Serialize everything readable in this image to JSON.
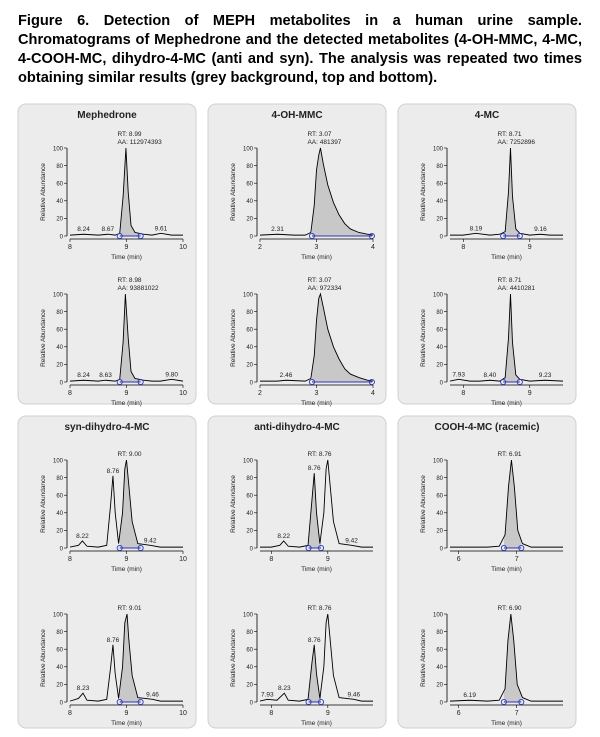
{
  "caption": "Figure 6. Detection of MEPH metabolites in a human urine sample. Chromatograms of Mephedrone and the detected metabolites (4-OH-MMC, 4-MC, 4-COOH-MC, dihydro-4-MC (anti and syn). The analysis was repeated two times obtaining similar results (grey background, top and bottom).",
  "chart_data": [
    {
      "type": "line",
      "title": "Mephedrone",
      "rt_label": "RT: 8.99",
      "aa_label": "AA: 112974393",
      "xlabel": "Time (min)",
      "ylabel": "Relative Abundance",
      "xlim": [
        8,
        10
      ],
      "xticks": [
        8,
        9,
        10
      ],
      "ylim": [
        0,
        100
      ],
      "yticks": [
        0,
        20,
        40,
        60,
        80,
        100
      ],
      "color": "#000000",
      "fill": "#c8c8c8",
      "marker_color": "#2a35c0",
      "x": [
        8.0,
        8.24,
        8.5,
        8.67,
        8.8,
        8.88,
        8.94,
        8.99,
        9.03,
        9.08,
        9.15,
        9.3,
        9.45,
        9.61,
        9.8,
        10.0
      ],
      "values": [
        1,
        2,
        1,
        2,
        1,
        3,
        45,
        100,
        50,
        12,
        4,
        2,
        1,
        3,
        1,
        1
      ],
      "integration_x": [
        8.88,
        9.25
      ],
      "peak_labels": [
        8.24,
        8.67,
        9.61
      ]
    },
    {
      "type": "line",
      "rt_label": "RT: 8.98",
      "aa_label": "AA: 93881022",
      "xlabel": "Time (min)",
      "ylabel": "Relative Abundance",
      "xlim": [
        8,
        10
      ],
      "xticks": [
        8,
        9,
        10
      ],
      "ylim": [
        0,
        100
      ],
      "yticks": [
        0,
        20,
        40,
        60,
        80,
        100
      ],
      "color": "#000000",
      "fill": "#c8c8c8",
      "marker_color": "#2a35c0",
      "x": [
        8.0,
        8.24,
        8.5,
        8.63,
        8.8,
        8.88,
        8.94,
        8.98,
        9.03,
        9.08,
        9.15,
        9.3,
        9.45,
        9.6,
        9.8,
        10.0
      ],
      "values": [
        1,
        2,
        1,
        2,
        1,
        3,
        45,
        100,
        50,
        12,
        4,
        2,
        1,
        1,
        3,
        1
      ],
      "integration_x": [
        8.88,
        9.25
      ],
      "peak_labels": [
        8.24,
        8.63,
        {
          "value": 9.8,
          "label": "9.80"
        }
      ]
    },
    {
      "type": "line",
      "title": "4-OH-MMC",
      "rt_label": "RT: 3.07",
      "aa_label": "AA: 481397",
      "xlabel": "Time (min)",
      "ylabel": "Relative Abundance",
      "xlim": [
        2,
        4
      ],
      "xticks": [
        2,
        3,
        4
      ],
      "ylim": [
        0,
        100
      ],
      "yticks": [
        0,
        20,
        40,
        60,
        80,
        100
      ],
      "color": "#000000",
      "fill": "#c8c8c8",
      "marker_color": "#2a35c0",
      "x": [
        2.0,
        2.31,
        2.6,
        2.8,
        2.9,
        2.96,
        3.0,
        3.04,
        3.07,
        3.12,
        3.2,
        3.3,
        3.4,
        3.5,
        3.6,
        3.75,
        3.9,
        4.0
      ],
      "values": [
        1,
        2,
        1,
        1,
        4,
        35,
        75,
        92,
        100,
        82,
        58,
        38,
        24,
        14,
        8,
        4,
        2,
        1
      ],
      "integration_x": [
        2.92,
        3.98
      ],
      "peak_labels": [
        2.31
      ]
    },
    {
      "type": "line",
      "rt_label": "RT: 3.07",
      "aa_label": "AA: 972334",
      "xlabel": "Time (min)",
      "ylabel": "Relative Abundance",
      "xlim": [
        2,
        4
      ],
      "xticks": [
        2,
        3,
        4
      ],
      "ylim": [
        0,
        100
      ],
      "yticks": [
        0,
        20,
        40,
        60,
        80,
        100
      ],
      "color": "#000000",
      "fill": "#c8c8c8",
      "marker_color": "#2a35c0",
      "x": [
        2.0,
        2.3,
        2.46,
        2.8,
        2.9,
        2.96,
        3.0,
        3.04,
        3.07,
        3.12,
        3.2,
        3.3,
        3.4,
        3.5,
        3.6,
        3.75,
        3.9,
        4.0
      ],
      "values": [
        1,
        1,
        2,
        1,
        4,
        30,
        70,
        95,
        100,
        85,
        60,
        40,
        26,
        15,
        9,
        5,
        2,
        1
      ],
      "integration_x": [
        2.92,
        3.98
      ],
      "peak_labels": [
        2.46
      ]
    },
    {
      "type": "line",
      "title": "4-MC",
      "rt_label": "RT: 8.71",
      "aa_label": "AA: 7252896",
      "xlabel": "Time (min)",
      "ylabel": "Relative Abundance",
      "xlim": [
        7.8,
        9.5
      ],
      "xticks": [
        8,
        9
      ],
      "ylim": [
        0,
        100
      ],
      "yticks": [
        0,
        20,
        40,
        60,
        80,
        100
      ],
      "color": "#000000",
      "fill": "#c8c8c8",
      "marker_color": "#2a35c0",
      "x": [
        7.8,
        8.0,
        8.19,
        8.4,
        8.55,
        8.63,
        8.68,
        8.71,
        8.74,
        8.79,
        8.85,
        9.0,
        9.16,
        9.3,
        9.5
      ],
      "values": [
        1,
        1,
        3,
        1,
        2,
        5,
        50,
        100,
        45,
        8,
        3,
        1,
        2,
        1,
        1
      ],
      "integration_x": [
        8.6,
        8.85
      ],
      "peak_labels": [
        8.19,
        9.16
      ]
    },
    {
      "type": "line",
      "rt_label": "RT: 8.71",
      "aa_label": "AA: 4410281",
      "xlabel": "Time (min)",
      "ylabel": "Relative Abundance",
      "xlim": [
        7.8,
        9.5
      ],
      "xticks": [
        8,
        9
      ],
      "ylim": [
        0,
        100
      ],
      "yticks": [
        0,
        20,
        40,
        60,
        80,
        100
      ],
      "color": "#000000",
      "fill": "#c8c8c8",
      "marker_color": "#2a35c0",
      "x": [
        7.8,
        7.93,
        8.1,
        8.25,
        8.4,
        8.55,
        8.63,
        8.68,
        8.71,
        8.74,
        8.79,
        8.85,
        9.0,
        9.23,
        9.5
      ],
      "values": [
        1,
        3,
        1,
        1,
        2,
        1,
        5,
        50,
        100,
        45,
        8,
        3,
        1,
        2,
        1
      ],
      "integration_x": [
        8.6,
        8.85
      ],
      "peak_labels": [
        7.93,
        {
          "value": 8.4,
          "label": "8.40"
        },
        9.23
      ]
    },
    {
      "type": "line",
      "title": "syn-dihydro-4-MC",
      "rt_label": "RT: 9.00",
      "xlabel": "Time (min)",
      "ylabel": "Relative Abundance",
      "xlim": [
        8,
        10
      ],
      "xticks": [
        8,
        9,
        10
      ],
      "ylim": [
        0,
        100
      ],
      "yticks": [
        0,
        20,
        40,
        60,
        80,
        100
      ],
      "color": "#000000",
      "fill": "#c8c8c8",
      "marker_color": "#2a35c0",
      "x": [
        8.0,
        8.15,
        8.22,
        8.3,
        8.5,
        8.65,
        8.72,
        8.76,
        8.8,
        8.86,
        8.93,
        8.97,
        9.0,
        9.04,
        9.1,
        9.2,
        9.42,
        9.6,
        10.0
      ],
      "values": [
        1,
        3,
        8,
        2,
        1,
        3,
        50,
        82,
        40,
        5,
        40,
        90,
        100,
        72,
        30,
        5,
        3,
        1,
        1
      ],
      "integration_x": [
        8.88,
        9.25
      ],
      "peak_labels": [
        8.22,
        8.76,
        9.42
      ]
    },
    {
      "type": "line",
      "rt_label": "RT: 9.01",
      "xlabel": "Time (min)",
      "ylabel": "Relative Abundance",
      "xlim": [
        8,
        10
      ],
      "xticks": [
        8,
        9,
        10
      ],
      "ylim": [
        0,
        100
      ],
      "yticks": [
        0,
        20,
        40,
        60,
        80,
        100
      ],
      "color": "#000000",
      "fill": "#c8c8c8",
      "marker_color": "#2a35c0",
      "x": [
        8.0,
        8.15,
        8.23,
        8.3,
        8.5,
        8.65,
        8.72,
        8.76,
        8.8,
        8.86,
        8.93,
        8.97,
        9.01,
        9.04,
        9.1,
        9.2,
        9.46,
        9.6,
        10.0
      ],
      "values": [
        1,
        4,
        10,
        2,
        1,
        3,
        40,
        65,
        32,
        4,
        40,
        90,
        100,
        72,
        30,
        5,
        3,
        1,
        1
      ],
      "integration_x": [
        8.88,
        9.25
      ],
      "peak_labels": [
        8.23,
        8.76,
        9.46
      ]
    },
    {
      "type": "line",
      "title": "anti-dihydro-4-MC",
      "rt_label": "RT: 8.76",
      "xlabel": "Time (min)",
      "ylabel": "Relative Abundance",
      "xlim": [
        7.8,
        9.8
      ],
      "xticks": [
        8,
        9
      ],
      "ylim": [
        0,
        100
      ],
      "yticks": [
        0,
        20,
        40,
        60,
        80,
        100
      ],
      "color": "#000000",
      "fill": "#c8c8c8",
      "marker_color": "#2a35c0",
      "x": [
        7.8,
        8.0,
        8.15,
        8.22,
        8.3,
        8.5,
        8.65,
        8.72,
        8.76,
        8.8,
        8.86,
        8.93,
        8.97,
        9.0,
        9.04,
        9.1,
        9.2,
        9.42,
        9.6,
        9.8
      ],
      "values": [
        1,
        1,
        3,
        8,
        2,
        1,
        3,
        55,
        85,
        40,
        5,
        40,
        90,
        100,
        72,
        30,
        5,
        3,
        1,
        1
      ],
      "integration_x": [
        8.66,
        8.88
      ],
      "peak_labels": [
        8.22,
        8.76,
        9.42
      ]
    },
    {
      "type": "line",
      "rt_label": "RT: 8.76",
      "xlabel": "Time (min)",
      "ylabel": "Relative Abundance",
      "xlim": [
        7.8,
        9.8
      ],
      "xticks": [
        8,
        9
      ],
      "ylim": [
        0,
        100
      ],
      "yticks": [
        0,
        20,
        40,
        60,
        80,
        100
      ],
      "color": "#000000",
      "fill": "#c8c8c8",
      "marker_color": "#2a35c0",
      "x": [
        7.8,
        7.93,
        8.1,
        8.23,
        8.3,
        8.5,
        8.65,
        8.72,
        8.76,
        8.8,
        8.86,
        8.93,
        8.97,
        9.0,
        9.04,
        9.1,
        9.2,
        9.46,
        9.6,
        9.8
      ],
      "values": [
        1,
        3,
        2,
        10,
        2,
        1,
        3,
        45,
        65,
        32,
        4,
        40,
        90,
        100,
        72,
        30,
        5,
        3,
        1,
        1
      ],
      "integration_x": [
        8.66,
        8.88
      ],
      "peak_labels": [
        7.93,
        8.23,
        8.76,
        9.46
      ]
    },
    {
      "type": "line",
      "title": "COOH-4-MC (racemic)",
      "rt_label": "RT: 6.91",
      "xlabel": "Time (min)",
      "ylabel": "Relative Abundance",
      "xlim": [
        5.85,
        7.8
      ],
      "xticks": [
        6,
        7
      ],
      "ylim": [
        0,
        100
      ],
      "yticks": [
        0,
        20,
        40,
        60,
        80,
        100
      ],
      "color": "#000000",
      "fill": "#c8c8c8",
      "marker_color": "#2a35c0",
      "x": [
        5.85,
        6.19,
        6.5,
        6.7,
        6.8,
        6.86,
        6.91,
        6.96,
        7.02,
        7.1,
        7.25,
        7.5,
        7.8
      ],
      "values": [
        1,
        1,
        1,
        2,
        15,
        70,
        100,
        70,
        20,
        5,
        1,
        1,
        1
      ],
      "integration_x": [
        6.78,
        7.08
      ]
    },
    {
      "type": "line",
      "rt_label": "RT: 6.90",
      "xlabel": "Time (min)",
      "ylabel": "Relative Abundance",
      "xlim": [
        5.85,
        7.8
      ],
      "xticks": [
        6,
        7
      ],
      "ylim": [
        0,
        100
      ],
      "yticks": [
        0,
        20,
        40,
        60,
        80,
        100
      ],
      "color": "#000000",
      "fill": "#c8c8c8",
      "marker_color": "#2a35c0",
      "x": [
        5.85,
        6.19,
        6.5,
        6.7,
        6.8,
        6.85,
        6.9,
        6.95,
        7.01,
        7.1,
        7.25,
        7.5,
        7.8
      ],
      "values": [
        1,
        2,
        1,
        2,
        15,
        70,
        100,
        70,
        20,
        5,
        1,
        1,
        1
      ],
      "integration_x": [
        6.78,
        7.08
      ],
      "peak_labels": [
        6.19
      ]
    }
  ]
}
